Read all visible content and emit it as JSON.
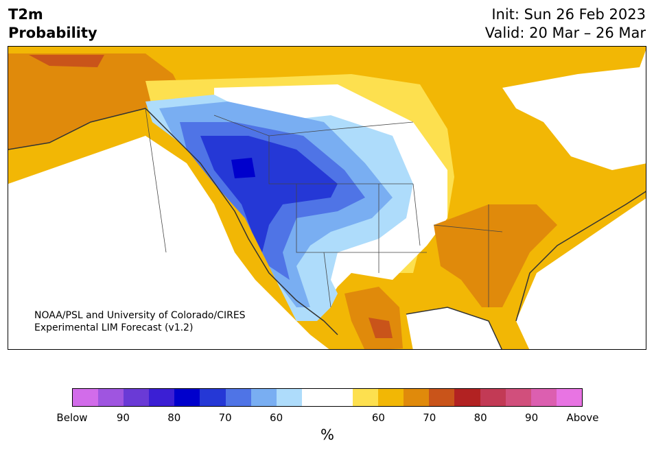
{
  "header": {
    "title_line1": "T2m",
    "title_line2": "Probability",
    "init_label": "Init: Sun 26 Feb 2023",
    "valid_label": "Valid: 20 Mar – 26 Mar"
  },
  "map": {
    "region": "North America",
    "credit_line1": "NOAA/PSL and University of Colorado/CIRES",
    "credit_line2": "Experimental LIM Forecast (v1.2)"
  },
  "colorbar": {
    "unit": "%",
    "below_colors": [
      "#d26cea",
      "#9f55e0",
      "#6a3ad6",
      "#3b1fd4",
      "#0000cc",
      "#2538d6",
      "#4f74e6",
      "#79aef2",
      "#aedcfb"
    ],
    "neutral_color": "#ffffff",
    "above_colors": [
      "#fde04f",
      "#f2b705",
      "#e08a0b",
      "#c9541a",
      "#b22222",
      "#c23a55",
      "#d14f7c",
      "#dc5fb0",
      "#e874e3"
    ],
    "tick_labels": [
      "Below",
      "90",
      "80",
      "70",
      "60",
      "60",
      "70",
      "80",
      "90",
      "Above"
    ]
  }
}
